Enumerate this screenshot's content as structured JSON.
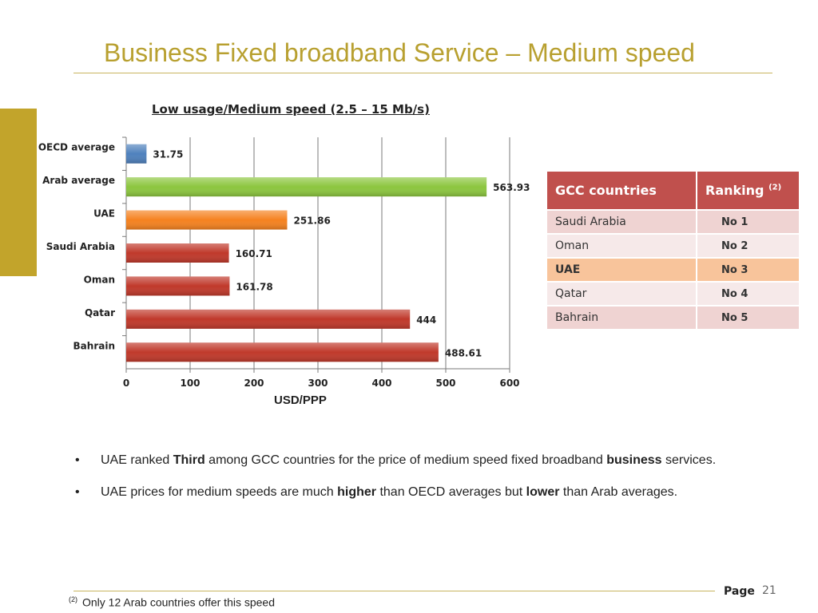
{
  "page_title": "Business Fixed broadband Service – Medium speed",
  "chart_data": {
    "type": "bar",
    "orientation": "horizontal",
    "title": "Low usage/Medium speed (2.5 – 15 Mb/s)",
    "xlabel": "USD/PPP",
    "ylabel": "",
    "xlim": [
      0,
      600
    ],
    "x_ticks": [
      "0",
      "100",
      "200",
      "300",
      "400",
      "500",
      "600"
    ],
    "grid": "vertical",
    "categories": [
      "OECD average",
      "Arab average",
      "UAE",
      "Saudi Arabia",
      "Oman",
      "Qatar",
      "Bahrain"
    ],
    "values": [
      31.75,
      563.93,
      251.86,
      160.71,
      161.78,
      444,
      488.61
    ],
    "value_labels": [
      "31.75",
      "563.93",
      "251.86",
      "160.71",
      "161.78",
      "444",
      "488.61"
    ],
    "bar_colors": [
      "#4F81BD",
      "#8CC63F",
      "#F58220",
      "#C0392B",
      "#C0392B",
      "#C0392B",
      "#C0392B"
    ]
  },
  "ranking_table": {
    "header_country": "GCC countries",
    "header_rank": "Ranking",
    "header_rank_sup": "(2)",
    "rows": [
      {
        "country": "Saudi Arabia",
        "rank": "No 1"
      },
      {
        "country": "Oman",
        "rank": "No 2"
      },
      {
        "country": "UAE",
        "rank": "No 3"
      },
      {
        "country": "Qatar",
        "rank": "No 4"
      },
      {
        "country": "Bahrain",
        "rank": "No 5"
      }
    ],
    "highlight_row": 2
  },
  "bullets": [
    {
      "marker": "•",
      "parts": [
        {
          "text": "UAE ranked ",
          "bold": false
        },
        {
          "text": "Third",
          "bold": true
        },
        {
          "text": " among GCC countries for the price of medium speed fixed broadband ",
          "bold": false
        },
        {
          "text": "business",
          "bold": true
        },
        {
          "text": " services.",
          "bold": false
        }
      ]
    },
    {
      "marker": "•",
      "parts": [
        {
          "text": "UAE prices for medium speeds are much ",
          "bold": false
        },
        {
          "text": "higher",
          "bold": true
        },
        {
          "text": " than OECD averages but ",
          "bold": false
        },
        {
          "text": "lower",
          "bold": true
        },
        {
          "text": " than Arab averages.",
          "bold": false
        }
      ]
    }
  ],
  "footer": {
    "page_label": "Page",
    "page_number": "21",
    "footnote_marker": "(2)",
    "footnote_text": "Only 12 Arab countries offer this speed"
  },
  "colors": {
    "title": "#B8A030",
    "accent_bar": "#C2A42B",
    "table_header": "#C0504D",
    "table_highlight": "#F8C49B"
  }
}
